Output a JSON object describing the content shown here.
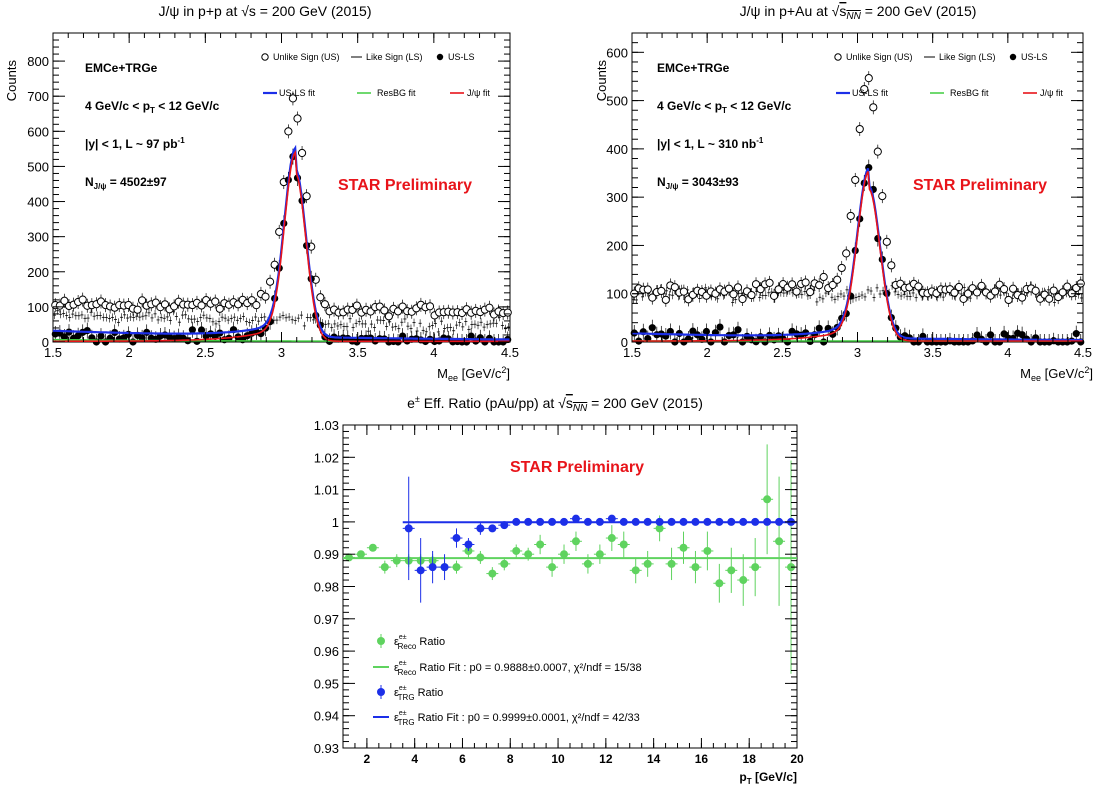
{
  "chart_data": [
    {
      "type": "scatter",
      "title": "J/ψ in p+p at √s = 200 GeV (2015)",
      "xlabel": "M_ee [GeV/c²]",
      "ylabel": "Counts",
      "xlim": [
        1.5,
        4.5
      ],
      "ylim": [
        0,
        880
      ],
      "xticks": [
        "1.5",
        "2",
        "2.5",
        "3",
        "3.5",
        "4",
        "4.5"
      ],
      "yticks": [
        "0",
        "100",
        "200",
        "300",
        "400",
        "500",
        "600",
        "700",
        "800"
      ],
      "labels": [
        "EMCe+TRGe",
        "4 GeV/c < p_T < 12 GeV/c",
        "|y| < 1, L ~ 97 pb⁻¹",
        "N_J/ψ = 4502±97"
      ],
      "annotation": "STAR Preliminary",
      "legend": {
        "us": "Unlike Sign (US)",
        "ls": "Like Sign (LS)",
        "usls": "US-LS",
        "usls_fit": "US-LS fit",
        "resbg_fit": "ResBG fit",
        "jpsi_fit": "J/ψ fit"
      },
      "fit": {
        "amplitude": 480,
        "mean": 3.09,
        "sigma": 0.07,
        "background_level": 32,
        "background_floor": 2
      }
    },
    {
      "type": "scatter",
      "title": "J/ψ in p+Au at √s_NN = 200 GeV (2015)",
      "xlabel": "M_ee [GeV/c²]",
      "ylabel": "Counts",
      "xlim": [
        1.5,
        4.5
      ],
      "ylim": [
        0,
        640
      ],
      "xticks": [
        "1.5",
        "2",
        "2.5",
        "3",
        "3.5",
        "4",
        "4.5"
      ],
      "yticks": [
        "0",
        "100",
        "200",
        "300",
        "400",
        "500",
        "600"
      ],
      "labels": [
        "EMCe+TRGe",
        "4 GeV/c < p_T < 12 GeV/c",
        "|y| < 1, L ~ 310 nb⁻¹",
        "N_J/ψ = 3043±93"
      ],
      "annotation": "STAR Preliminary",
      "legend": {
        "us": "Unlike Sign (US)",
        "ls": "Like Sign (LS)",
        "usls": "US-LS",
        "usls_fit": "US-LS fit",
        "resbg_fit": "ResBG fit",
        "jpsi_fit": "J/ψ fit"
      },
      "fit": {
        "amplitude": 315,
        "mean": 3.075,
        "sigma": 0.075,
        "background_level": 18,
        "background_floor": 2
      }
    },
    {
      "type": "scatter",
      "title": "e± Eff. Ratio (pAu/pp) at √s_NN = 200 GeV (2015)",
      "xlabel": "p_T [GeV/c]",
      "ylabel": "",
      "xlim": [
        1,
        20
      ],
      "ylim": [
        0.93,
        1.03
      ],
      "xticks": [
        "2",
        "4",
        "6",
        "8",
        "10",
        "12",
        "14",
        "16",
        "18",
        "20"
      ],
      "yticks": [
        "0.93",
        "0.94",
        "0.95",
        "0.96",
        "0.97",
        "0.98",
        "0.99",
        "1",
        "1.01",
        "1.02",
        "1.03"
      ],
      "annotation": "STAR Preliminary",
      "series": [
        {
          "name": "ε_Reco^e± Ratio",
          "color": "#5fd35f",
          "x": [
            1.25,
            1.75,
            2.25,
            2.75,
            3.25,
            3.75,
            4.25,
            4.75,
            5.25,
            5.75,
            6.25,
            6.75,
            7.25,
            7.75,
            8.25,
            8.75,
            9.25,
            9.75,
            10.25,
            10.75,
            11.25,
            11.75,
            12.25,
            12.75,
            13.25,
            13.75,
            14.25,
            14.75,
            15.25,
            15.75,
            16.25,
            16.75,
            17.25,
            17.75,
            18.25,
            18.75,
            19.25,
            19.75
          ],
          "y": [
            0.989,
            0.99,
            0.992,
            0.986,
            0.988,
            0.988,
            0.988,
            0.988,
            0.986,
            0.986,
            0.991,
            0.989,
            0.984,
            0.987,
            0.991,
            0.99,
            0.993,
            0.986,
            0.99,
            0.994,
            0.987,
            0.99,
            0.995,
            0.993,
            0.985,
            0.987,
            0.998,
            0.987,
            0.992,
            0.986,
            0.991,
            0.981,
            0.985,
            0.982,
            0.986,
            1.007,
            0.994,
            0.986
          ],
          "err": [
            0.001,
            0.001,
            0.001,
            0.002,
            0.002,
            0.002,
            0.002,
            0.002,
            0.002,
            0.002,
            0.002,
            0.002,
            0.002,
            0.002,
            0.002,
            0.002,
            0.003,
            0.003,
            0.003,
            0.003,
            0.003,
            0.003,
            0.004,
            0.004,
            0.004,
            0.004,
            0.004,
            0.005,
            0.005,
            0.005,
            0.006,
            0.006,
            0.007,
            0.008,
            0.009,
            0.017,
            0.02,
            0.033
          ]
        },
        {
          "name": "ε_TRG^e± Ratio",
          "color": "#1c2fe8",
          "x": [
            3.75,
            4.25,
            4.75,
            5.25,
            5.75,
            6.25,
            6.75,
            7.25,
            7.75,
            8.25,
            8.75,
            9.25,
            9.75,
            10.25,
            10.75,
            11.25,
            11.75,
            12.25,
            12.75,
            13.25,
            13.75,
            14.25,
            14.75,
            15.25,
            15.75,
            16.25,
            16.75,
            17.25,
            17.75,
            18.25,
            18.75,
            19.25,
            19.75
          ],
          "y": [
            0.998,
            0.985,
            0.986,
            0.986,
            0.995,
            0.993,
            0.998,
            0.998,
            0.999,
            1.0,
            1.0,
            1.0,
            1.0,
            1.0,
            1.001,
            1.0,
            1.0,
            1.001,
            1.0,
            1.0,
            1.0,
            1.0,
            1.0,
            1.0,
            1.0,
            1.0,
            1.0,
            1.0,
            1.0,
            1.0,
            1.0,
            1.0,
            1.0
          ],
          "err": [
            0.016,
            0.01,
            0.005,
            0.004,
            0.003,
            0.002,
            0.002,
            0.001,
            0.001,
            0.001,
            0.001,
            0.001,
            0.001,
            0.001,
            0.001,
            0.001,
            0.001,
            0.001,
            0.001,
            0.001,
            0.001,
            0.001,
            0.001,
            0.001,
            0.001,
            0.001,
            0.001,
            0.001,
            0.001,
            0.001,
            0.001,
            0.001,
            0.001
          ]
        }
      ],
      "fits": [
        {
          "name": "ε_Reco^e± Ratio Fit : p0 = 0.9888±0.0007, χ²/ndf = 15/38",
          "p0": 0.9888,
          "xrange": [
            1,
            20
          ],
          "color": "#5fd35f"
        },
        {
          "name": "ε_TRG^e± Ratio Fit : p0 = 0.9999±0.0001, χ²/ndf = 42/33",
          "p0": 0.9999,
          "xrange": [
            3.5,
            20
          ],
          "color": "#1c2fe8"
        }
      ]
    }
  ]
}
